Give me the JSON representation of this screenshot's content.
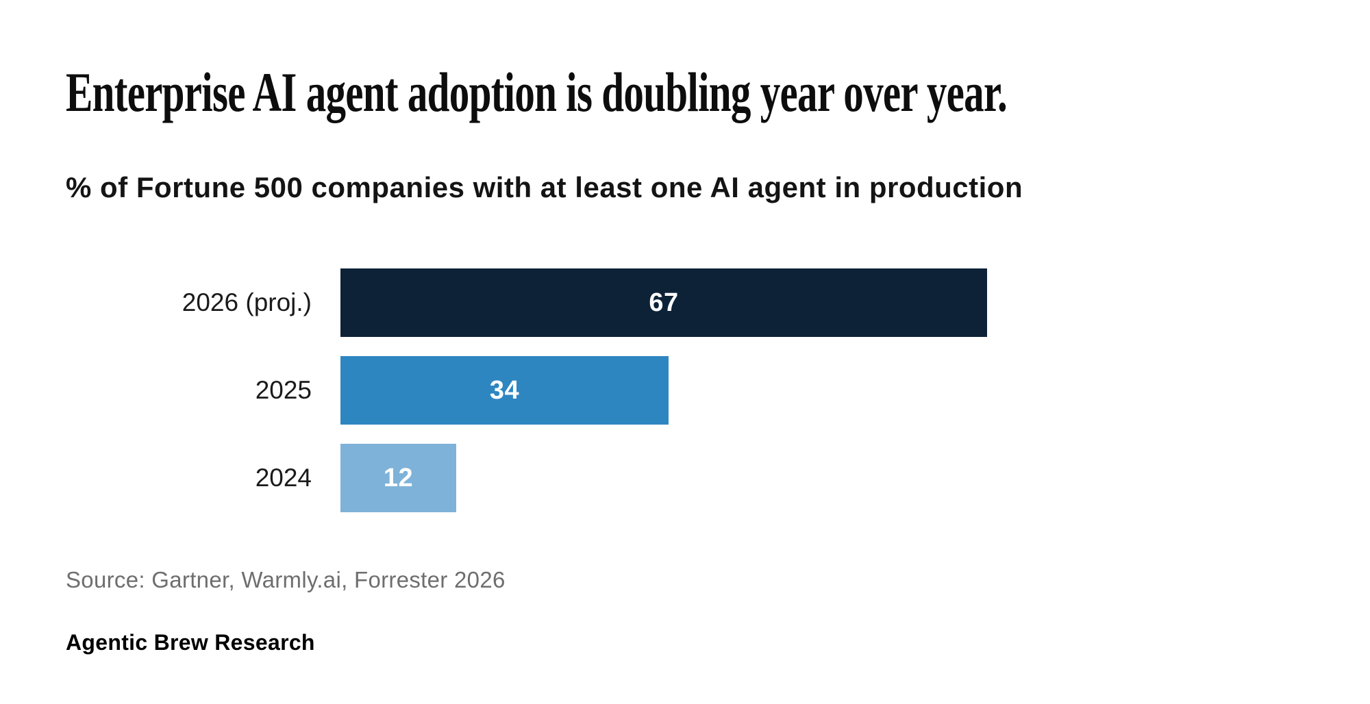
{
  "header": {
    "title": "Enterprise AI agent adoption is doubling year over year.",
    "subtitle": "% of Fortune 500 companies with at least one AI agent in production"
  },
  "footer": {
    "source": "Source: Gartner, Warmly.ai, Forrester 2026",
    "attribution": "Agentic Brew Research"
  },
  "chart_data": {
    "type": "bar",
    "orientation": "horizontal",
    "title": "Enterprise AI agent adoption is doubling year over year.",
    "subtitle": "% of Fortune 500 companies with at least one AI agent in production",
    "categories": [
      "2026 (proj.)",
      "2025",
      "2024"
    ],
    "values": [
      67,
      34,
      12
    ],
    "unit": "% of Fortune 500 companies",
    "xlim": [
      0,
      67
    ],
    "grid": false,
    "legend": false,
    "bar_colors": [
      "#0d2237",
      "#2e86c1",
      "#7fb2d8"
    ],
    "value_label_color": "#ffffff",
    "source": "Source: Gartner, Warmly.ai, Forrester 2026"
  }
}
